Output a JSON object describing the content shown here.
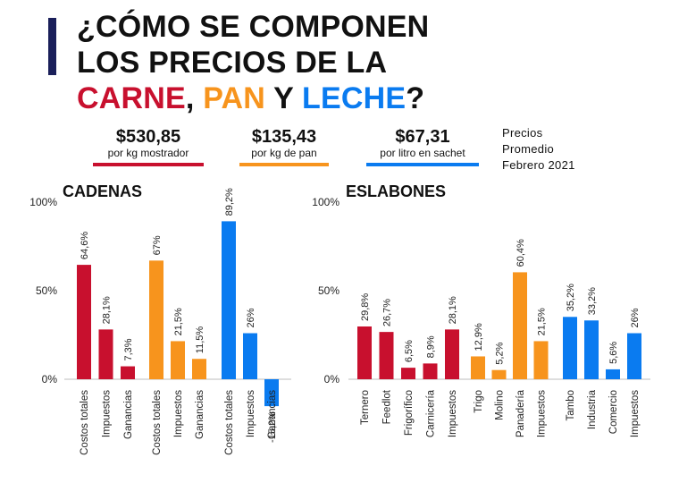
{
  "title": {
    "line1": "¿CÓMO SE COMPONEN",
    "line2": "LOS PRECIOS DE LA",
    "carne": "CARNE",
    "comma": ", ",
    "pan": "PAN",
    "y": " Y ",
    "leche": "LECHE",
    "q": "?"
  },
  "prices": [
    {
      "value": "$530,85",
      "unit": "por kg mostrador",
      "color": "#c8102e"
    },
    {
      "value": "$135,43",
      "unit": "por kg de pan",
      "color": "#f7941d"
    },
    {
      "value": "$67,31",
      "unit": "por litro en sachet",
      "color": "#0a7bf0"
    }
  ],
  "note": {
    "line1": "Precios",
    "line2": "Promedio",
    "line3": "Febrero 2021"
  },
  "colors": {
    "carne": "#c8102e",
    "pan": "#f7941d",
    "leche": "#0a7bf0"
  },
  "chart_data": [
    {
      "type": "bar",
      "title": "CADENAS",
      "yticks": [
        "100%",
        "50%",
        "0%"
      ],
      "ylim": [
        0,
        100
      ],
      "groups": [
        {
          "color": "#c8102e",
          "categories": [
            "Costos totales",
            "Impuestos",
            "Ganancias"
          ],
          "values": [
            64.6,
            28.1,
            7.3
          ],
          "labels": [
            "64,6%",
            "28,1%",
            "7,3%"
          ]
        },
        {
          "color": "#f7941d",
          "categories": [
            "Costos totales",
            "Impuestos",
            "Ganancias"
          ],
          "values": [
            67,
            21.5,
            11.5
          ],
          "labels": [
            "67%",
            "21,5%",
            "11,5%"
          ]
        },
        {
          "color": "#0a7bf0",
          "categories": [
            "Costos totales",
            "Impuestos",
            "Ganancias"
          ],
          "values": [
            89.2,
            26,
            -15.2
          ],
          "labels": [
            "89,2%",
            "26%",
            "-15,2%"
          ]
        }
      ]
    },
    {
      "type": "bar",
      "title": "ESLABONES",
      "yticks": [
        "100%",
        "50%",
        "0%"
      ],
      "ylim": [
        0,
        100
      ],
      "groups": [
        {
          "color": "#c8102e",
          "categories": [
            "Ternero",
            "Feedlot",
            "Frigorífico",
            "Carnicería",
            "Impuestos"
          ],
          "values": [
            29.8,
            26.7,
            6.5,
            8.9,
            28.1
          ],
          "labels": [
            "29,8%",
            "26,7%",
            "6,5%",
            "8,9%",
            "28,1%"
          ]
        },
        {
          "color": "#f7941d",
          "categories": [
            "Trigo",
            "Molino",
            "Panadería",
            "Impuestos"
          ],
          "values": [
            12.9,
            5.2,
            60.4,
            21.5
          ],
          "labels": [
            "12,9%",
            "5,2%",
            "60,4%",
            "21,5%"
          ]
        },
        {
          "color": "#0a7bf0",
          "categories": [
            "Tambo",
            "Industria",
            "Comercio",
            "Impuestos"
          ],
          "values": [
            35.2,
            33.2,
            5.6,
            26
          ],
          "labels": [
            "35,2%",
            "33,2%",
            "5,6%",
            "26%"
          ]
        }
      ]
    }
  ]
}
